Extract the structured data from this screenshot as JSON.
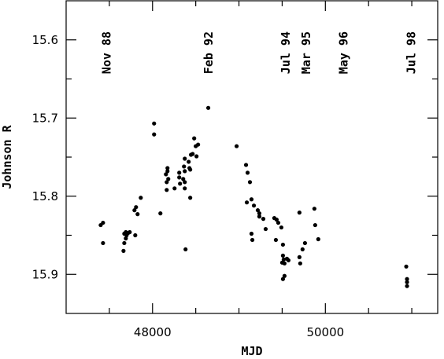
{
  "chart_data": {
    "type": "scatter",
    "x_label": "MJD",
    "y_label": "Johnson R",
    "xlim": [
      47000,
      51300
    ],
    "ylim": [
      15.55,
      15.95
    ],
    "y_inverted": true,
    "xticks": [
      48000,
      50000
    ],
    "xminor_ticks": [
      47500,
      48500,
      49000,
      49500,
      50500,
      51000
    ],
    "yticks": [
      15.6,
      15.7,
      15.8,
      15.9
    ],
    "yminor_ticks": [
      15.65,
      15.75,
      15.85
    ],
    "color": "#000000",
    "annotations": [
      {
        "text": "Nov 88",
        "x": 47470
      },
      {
        "text": "Feb 92",
        "x": 48650
      },
      {
        "text": "Jul 94",
        "x": 49540
      },
      {
        "text": "Mar 95",
        "x": 49780
      },
      {
        "text": "May 96",
        "x": 50210
      },
      {
        "text": "Jul 98",
        "x": 50995
      }
    ],
    "x": [
      47400,
      47427,
      47427,
      47673,
      47691,
      47700,
      47718,
      47736,
      47691,
      47673,
      47664,
      47791,
      47809,
      47827,
      47800,
      47864,
      48091,
      48018,
      48018,
      48155,
      48164,
      48164,
      48173,
      48173,
      48182,
      48255,
      48309,
      48309,
      48318,
      48355,
      48373,
      48364,
      48373,
      48373,
      48373,
      48382,
      48418,
      48427,
      48436,
      48445,
      48436,
      48464,
      48482,
      48500,
      48509,
      48527,
      48645,
      48973,
      49082,
      49100,
      49091,
      49127,
      49145,
      49145,
      49155,
      49173,
      49218,
      49236,
      49236,
      49282,
      49309,
      49409,
      49427,
      49436,
      49455,
      49491,
      49509,
      49500,
      49509,
      49518,
      49527,
      49527,
      49509,
      49555,
      49573,
      49700,
      49700,
      49709,
      49736,
      49764,
      49873,
      49882,
      49918,
      50936,
      50945,
      50945,
      50945
    ],
    "y": [
      15.837,
      15.834,
      15.86,
      15.848,
      15.846,
      15.85,
      15.847,
      15.846,
      15.854,
      15.86,
      15.87,
      15.818,
      15.814,
      15.823,
      15.85,
      15.802,
      15.822,
      15.707,
      15.721,
      15.772,
      15.782,
      15.792,
      15.764,
      15.768,
      15.778,
      15.79,
      15.77,
      15.776,
      15.784,
      15.778,
      15.752,
      15.762,
      15.768,
      15.782,
      15.79,
      15.868,
      15.756,
      15.764,
      15.766,
      15.747,
      15.802,
      15.746,
      15.726,
      15.736,
      15.749,
      15.734,
      15.687,
      15.736,
      15.76,
      15.77,
      15.808,
      15.782,
      15.804,
      15.848,
      15.856,
      15.812,
      15.818,
      15.822,
      15.826,
      15.829,
      15.842,
      15.828,
      15.856,
      15.83,
      15.834,
      15.84,
      15.862,
      15.885,
      15.876,
      15.881,
      15.886,
      15.902,
      15.906,
      15.88,
      15.882,
      15.821,
      15.878,
      15.886,
      15.868,
      15.86,
      15.816,
      15.837,
      15.855,
      15.89,
      15.906,
      15.91,
      15.915
    ]
  }
}
